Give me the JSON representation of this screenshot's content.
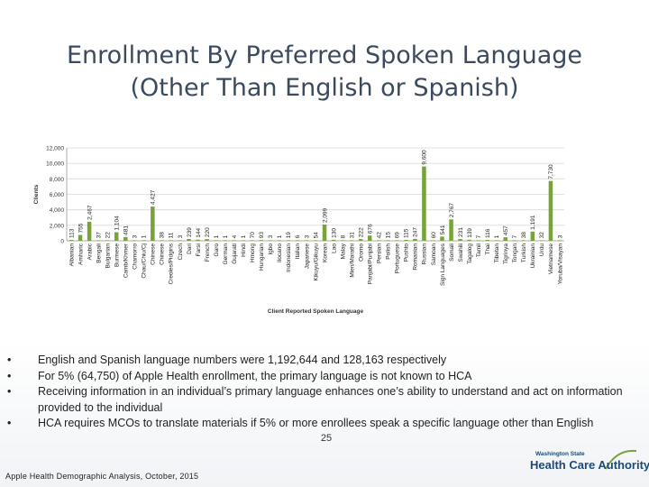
{
  "slide": {
    "title_line1": "Enrollment By Preferred Spoken Language",
    "title_line2": "(Other Than English or Spanish)",
    "bullets": [
      "English and Spanish language numbers were 1,192,644 and 128,163 respectively",
      "For 5% (64,750) of Apple Health enrollment, the primary language is not known to HCA",
      "Receiving information in an individual’s primary language enhances one’s ability to understand and act on information provided to the individual",
      "HCA requires MCOs to translate materials if 5% or more enrollees speak a specific language other than English"
    ],
    "bullet_symbol": "•",
    "page_number": "25",
    "footer": "Apple Health Demographic Analysis, October, 2015",
    "logo": {
      "line1": "Washington State",
      "line2": "Health Care Authority"
    }
  },
  "colors": {
    "bar": "#77a33a",
    "title": "#3b4a5e",
    "grid": "#d9d9d9"
  },
  "chart_data": {
    "type": "bar",
    "ylabel": "Clients",
    "xlabel": "Client Reported Spoken Language",
    "ylim": [
      0,
      12000
    ],
    "yticks": [
      0,
      2000,
      4000,
      6000,
      8000,
      10000,
      12000
    ],
    "ytick_labels": [
      "0",
      "2,000",
      "4,000",
      "6,000",
      "8,000",
      "10,000",
      "12,000"
    ],
    "grid": true,
    "categories": [
      "Albanian",
      "Amharic",
      "Arabic",
      "Bengali",
      "Bulgarian",
      "Burmese",
      "Camb/Khmer",
      "Chamorro",
      "Chau/Chiu/Cj",
      "Chinese",
      "Chinese",
      "Creoles/Pidgins",
      "Czech",
      "Dari",
      "Farsi",
      "French",
      "Garo",
      "German",
      "Gujarati",
      "Hindi",
      "Hmong",
      "Hungarian",
      "Igbo",
      "Ilocano",
      "Indonesian",
      "Italian",
      "Japanese",
      "Kikuyu/Gikuyu",
      "Korean",
      "Lao",
      "Malay",
      "Mien/Marathi",
      "Oromo",
      "Panjabi/Punjabi",
      "Persian",
      "Polish",
      "Portuguese",
      "Pushto",
      "Romanian",
      "Russian",
      "Samoan",
      "Sign Languages",
      "Somali",
      "Swahili",
      "Tagalog",
      "Tamil",
      "Thai",
      "Tibetan",
      "Tigrinya",
      "Tongan",
      "Turkish",
      "Ukrainian",
      "Urdu",
      "Vietnamese",
      "Yoruba/Visayan"
    ],
    "values": [
      113,
      755,
      2467,
      37,
      22,
      1104,
      481,
      3,
      1,
      4427,
      38,
      11,
      3,
      239,
      144,
      220,
      1,
      1,
      4,
      1,
      70,
      93,
      3,
      1,
      19,
      6,
      3,
      54,
      2099,
      130,
      8,
      31,
      222,
      676,
      42,
      15,
      69,
      115,
      247,
      9600,
      60,
      541,
      2767,
      231,
      139,
      7,
      116,
      1,
      457,
      7,
      38,
      1191,
      32,
      7730,
      3
    ],
    "value_labels": [
      "113",
      "755",
      "2,467",
      "37",
      "22",
      "1,104",
      "481",
      "3",
      "1",
      "4,427",
      "38",
      "11",
      "3",
      "239",
      "144",
      "220",
      "1",
      "1",
      "4",
      "1",
      "70",
      "93",
      "3",
      "1",
      "19",
      "6",
      "3",
      "54",
      "2,099",
      "130",
      "8",
      "31",
      "222",
      "676",
      "42",
      "15",
      "69",
      "115",
      "247",
      "9,600",
      "60",
      "541",
      "2,767",
      "231",
      "139",
      "7",
      "116",
      "1",
      "457",
      "7",
      "38",
      "1,191",
      "32",
      "7,730",
      "3"
    ]
  }
}
